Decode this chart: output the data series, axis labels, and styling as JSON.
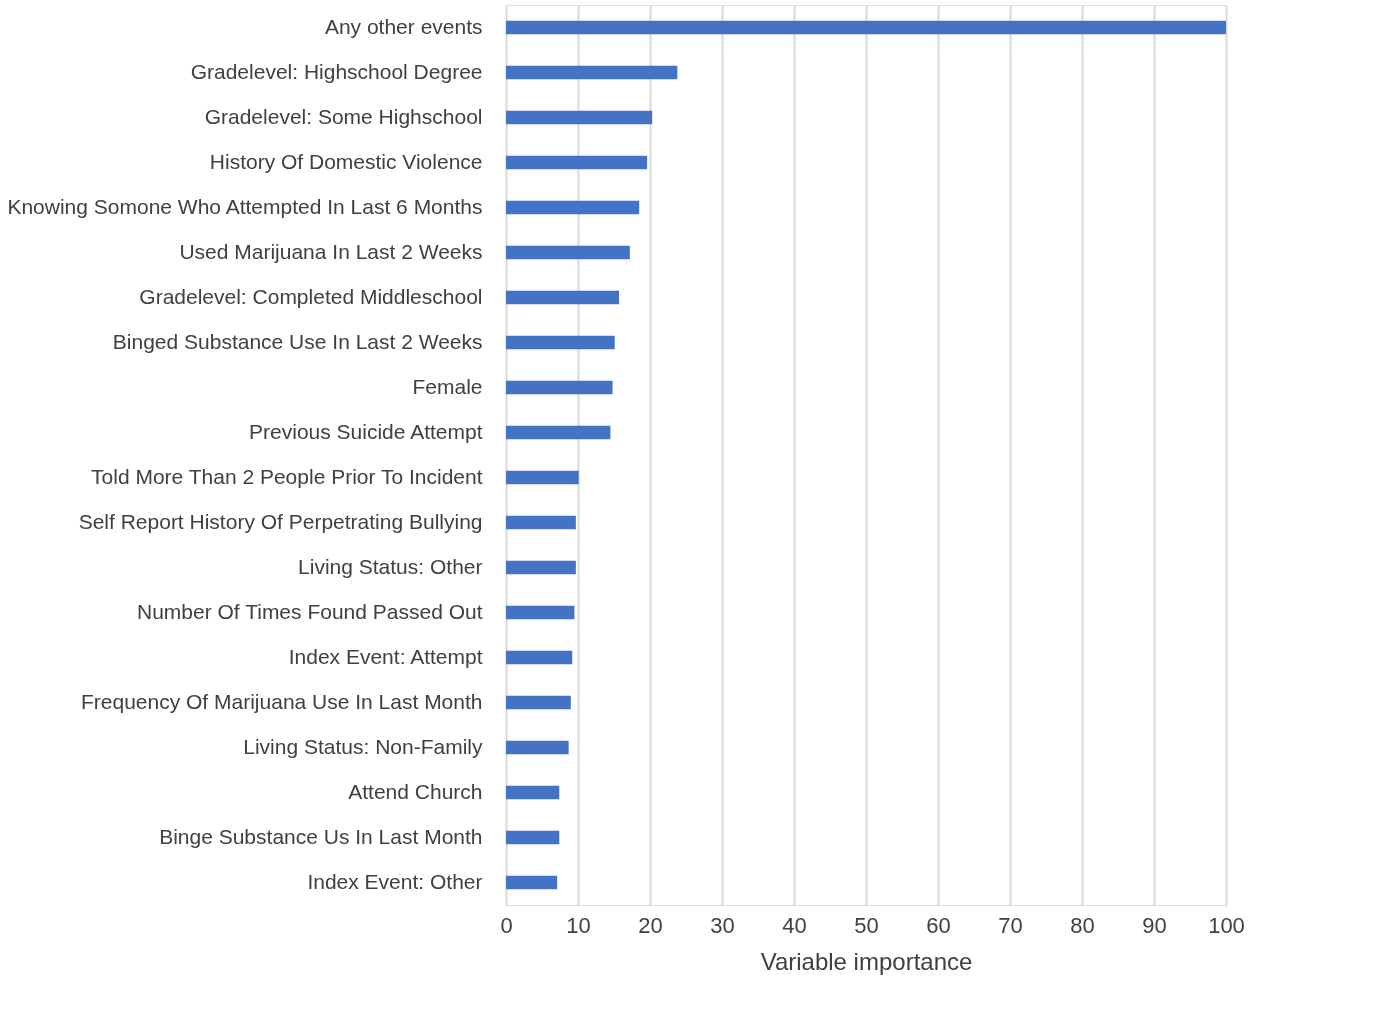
{
  "chart_data": {
    "type": "bar",
    "orientation": "horizontal",
    "xlabel": "Variable importance",
    "categories": [
      "Any other events",
      "Gradelevel: Highschool Degree",
      "Gradelevel: Some Highschool",
      "History Of Domestic Violence",
      "Knowing Somone Who Attempted In Last 6 Months",
      "Used Marijuana In Last 2 Weeks",
      "Gradelevel: Completed Middleschool",
      "Binged Substance Use In Last 2 Weeks",
      "Female",
      "Previous Suicide Attempt",
      "Told More Than 2 People Prior To Incident",
      "Self Report History Of Perpetrating Bullying",
      "Living Status: Other",
      "Number Of Times Found Passed Out",
      "Index Event: Attempt",
      "Frequency Of Marijuana Use In Last Month",
      "Living Status: Non-Family",
      "Attend Church",
      "Binge Substance Us In Last Month",
      "Index Event: Other"
    ],
    "values": [
      100,
      23.8,
      20.3,
      19.6,
      18.5,
      17.2,
      15.7,
      15.1,
      14.8,
      14.5,
      10.1,
      9.7,
      9.7,
      9.5,
      9.2,
      9.0,
      8.7,
      7.4,
      7.4,
      7.1
    ],
    "color": "#4472c4",
    "xlim": [
      0,
      100
    ],
    "xticks": [
      0,
      10,
      20,
      30,
      40,
      50,
      60,
      70,
      80,
      90,
      100
    ],
    "grid": "x"
  }
}
